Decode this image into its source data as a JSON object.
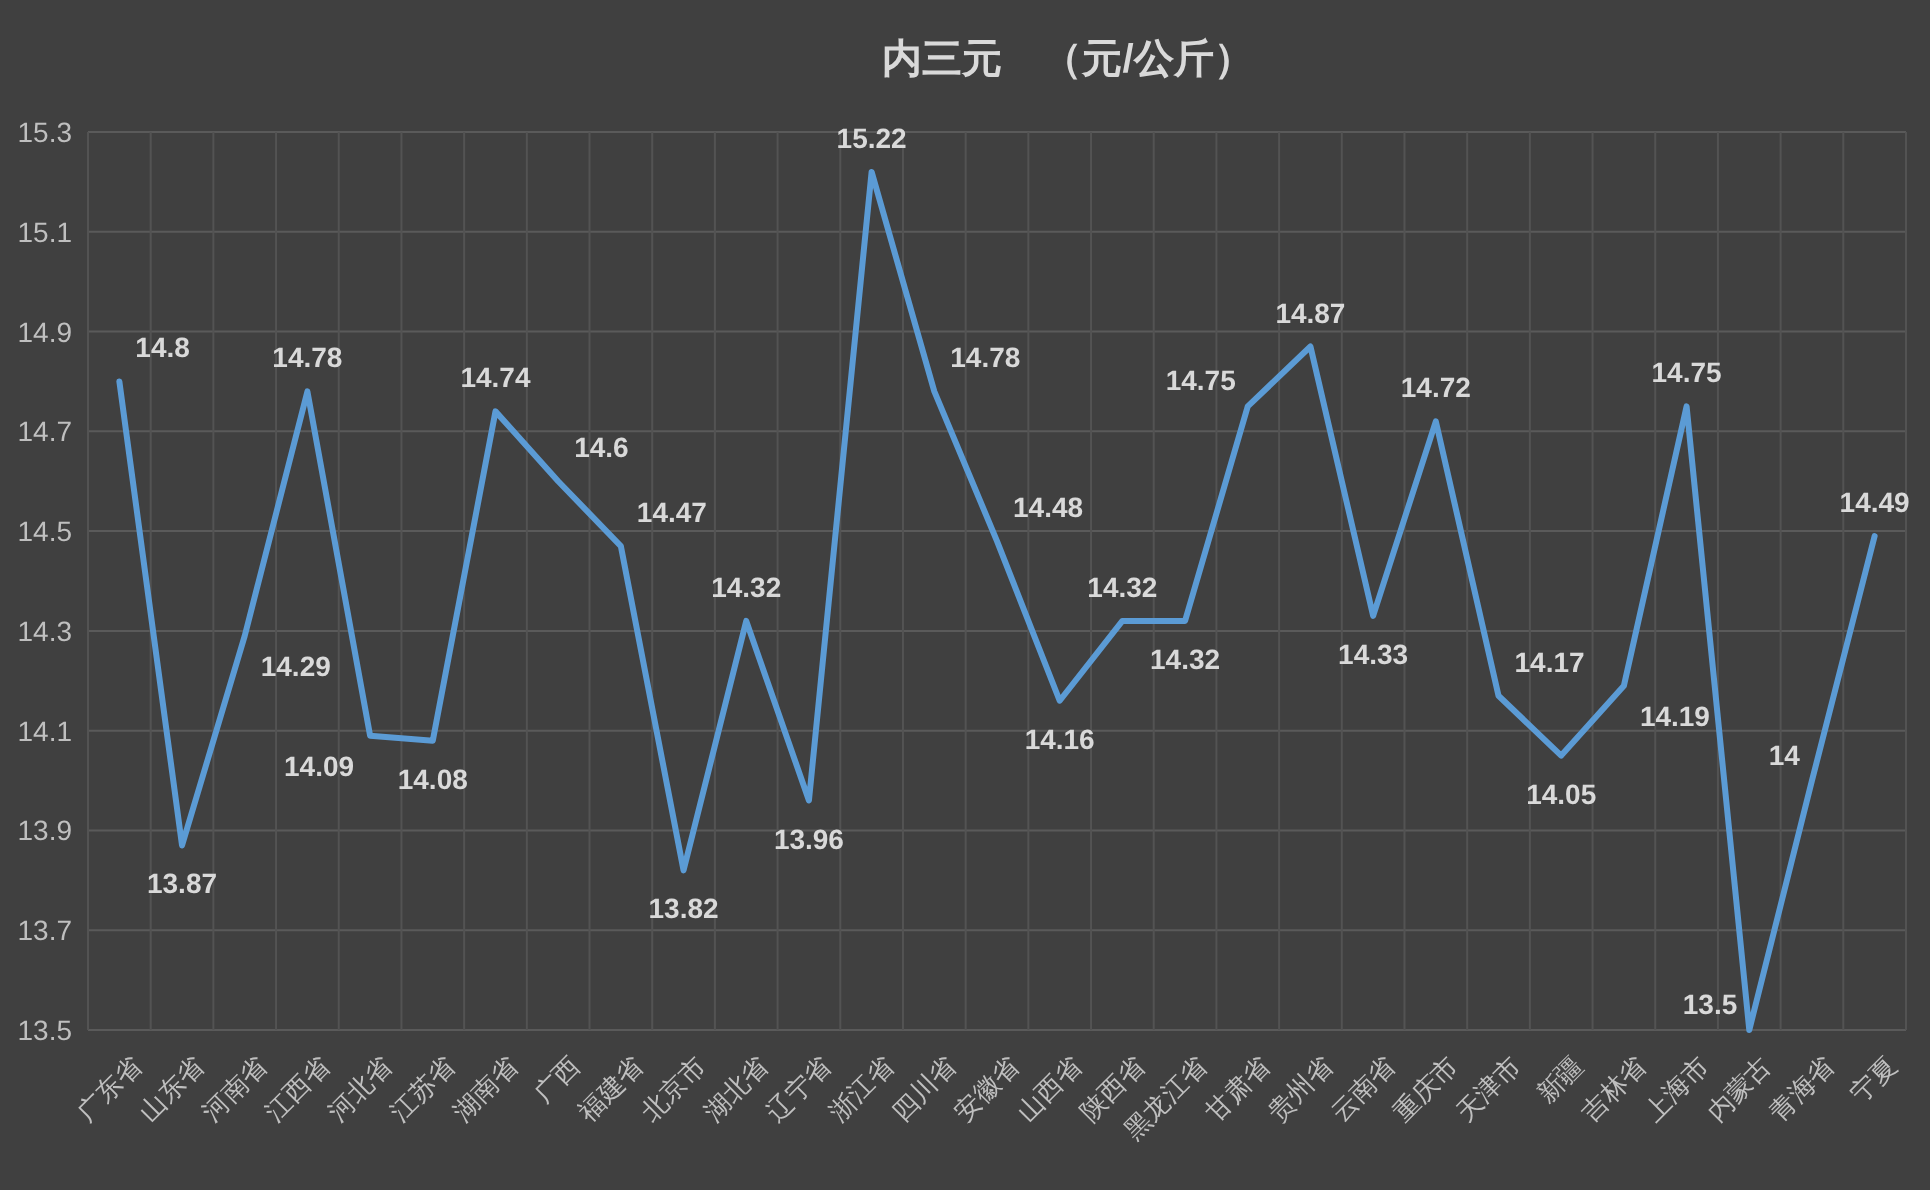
{
  "chart_data": {
    "type": "line",
    "title": "内三元　（元/公斤）",
    "categories": [
      "广东省",
      "山东省",
      "河南省",
      "江西省",
      "河北省",
      "江苏省",
      "湖南省",
      "广西",
      "福建省",
      "北京市",
      "湖北省",
      "辽宁省",
      "浙江省",
      "四川省",
      "安徽省",
      "山西省",
      "陕西省",
      "黑龙江省",
      "甘肃省",
      "贵州省",
      "云南省",
      "重庆市",
      "天津市",
      "新疆",
      "吉林省",
      "上海市",
      "内蒙古",
      "青海省",
      "宁夏"
    ],
    "series": [
      {
        "color": "#5b9bd5",
        "values": [
          14.8,
          13.87,
          14.29,
          14.78,
          14.09,
          14.08,
          14.74,
          14.6,
          14.47,
          13.82,
          14.32,
          13.96,
          15.22,
          14.78,
          14.48,
          14.16,
          14.32,
          14.32,
          14.75,
          14.87,
          14.33,
          14.72,
          14.17,
          14.05,
          14.19,
          14.75,
          13.5,
          14,
          14.49
        ]
      }
    ],
    "ylim": [
      13.5,
      15.3
    ],
    "yticks": [
      13.5,
      13.7,
      13.9,
      14.1,
      14.3,
      14.5,
      14.7,
      14.9,
      15.1,
      15.3
    ],
    "grid": true,
    "data_labels": true
  }
}
